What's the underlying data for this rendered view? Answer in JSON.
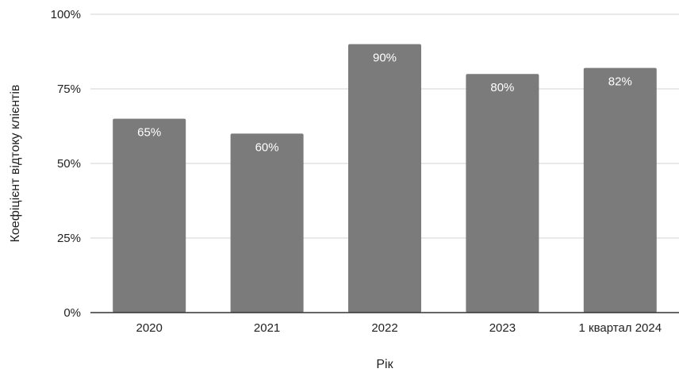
{
  "chart_data": {
    "type": "bar",
    "categories": [
      "2020",
      "2021",
      "2022",
      "2023",
      "1 квартал 2024"
    ],
    "values": [
      65,
      60,
      90,
      80,
      82
    ],
    "data_labels": [
      "65%",
      "60%",
      "90%",
      "80%",
      "82%"
    ],
    "xlabel": "Рік",
    "ylabel": "Коефіцієнт відтоку клієнтів",
    "ylim": [
      0,
      100
    ],
    "yticks": [
      0,
      25,
      50,
      75,
      100
    ],
    "ytick_labels": [
      "0%",
      "25%",
      "50%",
      "75%",
      "100%"
    ],
    "grid": true,
    "legend": "none",
    "colors": {
      "bar": "#7b7b7b",
      "grid": "#d3d3d3",
      "axis": "#333333",
      "label": "#ffffff"
    }
  }
}
